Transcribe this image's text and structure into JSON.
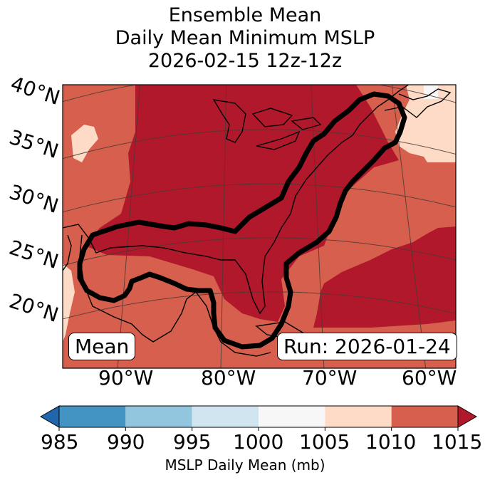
{
  "title": {
    "line1": "Ensemble Mean",
    "line2": "Daily Mean Minimum MSLP",
    "line3": "2026-02-15 12z-12z"
  },
  "map": {
    "lat_labels": [
      "40°N",
      "35°N",
      "30°N",
      "25°N",
      "20°N"
    ],
    "lon_labels": [
      "90°W",
      "80°W",
      "70°W",
      "60°W"
    ],
    "mean_label": "Mean",
    "run_label": "Run: 2026-01-24"
  },
  "colorbar": {
    "ticks": [
      "985",
      "990",
      "995",
      "1000",
      "1005",
      "1010",
      "1015"
    ],
    "label": "MSLP Daily Mean (mb)",
    "bins": [
      {
        "from": 985,
        "to": 990,
        "color": "#4393c3"
      },
      {
        "from": 990,
        "to": 995,
        "color": "#92c5de"
      },
      {
        "from": 995,
        "to": 1000,
        "color": "#d1e5f0"
      },
      {
        "from": 1000,
        "to": 1005,
        "color": "#f7f7f7"
      },
      {
        "from": 1005,
        "to": 1010,
        "color": "#fddbc7"
      },
      {
        "from": 1010,
        "to": 1015,
        "color": "#d6604d"
      }
    ],
    "under_color": "#2166ac",
    "over_color": "#b2182b"
  }
}
